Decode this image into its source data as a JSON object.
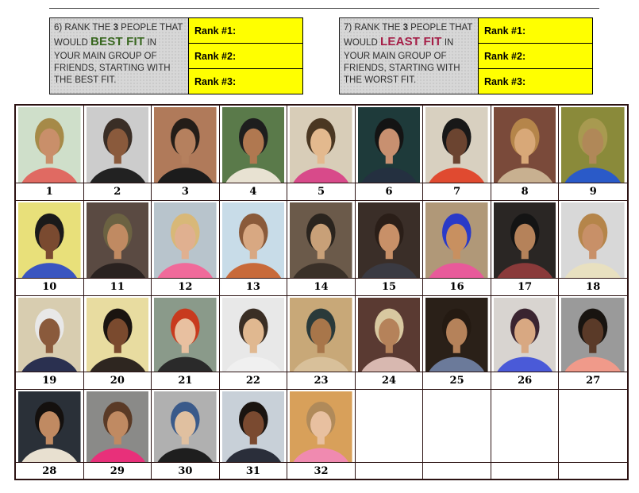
{
  "page": {
    "background": "#ffffff"
  },
  "colors": {
    "rank_cell_bg": "#ffff00",
    "question_box_bg": "#d7d7d7",
    "grid_border": "#2b1212",
    "best_fit_green": "#38671f",
    "least_fit_red": "#a51e47"
  },
  "questions": [
    {
      "pre": "6) RANK THE ",
      "num": "3",
      "mid": " PEOPLE THAT WOULD ",
      "highlight": "BEST FIT",
      "highlight_color": "#38671f",
      "post": " IN YOUR MAIN GROUP OF FRIENDS, STARTING WITH THE BEST FIT.",
      "ranks": [
        "Rank #1:",
        "Rank #2:",
        "Rank #3:"
      ]
    },
    {
      "pre": "7) RANK THE ",
      "num": "3",
      "mid": " PEOPLE THAT WOULD ",
      "highlight": "LEAST FIT",
      "highlight_color": "#a51e47",
      "post": " IN YOUR MAIN GROUP OF FRIENDS, STARTING WITH THE WORST FIT.",
      "ranks": [
        "Rank #1:",
        "Rank #2:",
        "Rank #3:"
      ]
    }
  ],
  "grid": {
    "columns": 9,
    "rows": 4,
    "empty_trailing_cells": 4,
    "people": [
      {
        "n": "1",
        "bg": "#cfdfca",
        "hair": "#a68a48",
        "skin": "#c98f6a",
        "shirt": "#e06a62"
      },
      {
        "n": "2",
        "bg": "#cccccc",
        "hair": "#3a2e26",
        "skin": "#8a5a3c",
        "shirt": "#222222"
      },
      {
        "n": "3",
        "bg": "#b07a5a",
        "hair": "#241d18",
        "skin": "#b5805e",
        "shirt": "#1c1c1c"
      },
      {
        "n": "4",
        "bg": "#5a7a4a",
        "hair": "#1e1e1e",
        "skin": "#b07850",
        "shirt": "#e8e2d2"
      },
      {
        "n": "5",
        "bg": "#d8cdb8",
        "hair": "#4a3722",
        "skin": "#e3b98e",
        "shirt": "#d84a8a"
      },
      {
        "n": "6",
        "bg": "#1e3a3a",
        "hair": "#141414",
        "skin": "#c89070",
        "shirt": "#243040"
      },
      {
        "n": "7",
        "bg": "#d8d0c0",
        "hair": "#181818",
        "skin": "#6b4430",
        "shirt": "#e04a30"
      },
      {
        "n": "8",
        "bg": "#7a4a3a",
        "hair": "#b5854a",
        "skin": "#d8a878",
        "shirt": "#c8b090"
      },
      {
        "n": "9",
        "bg": "#8a8a3a",
        "hair": "#a89a50",
        "skin": "#b08858",
        "shirt": "#2a5ac8"
      },
      {
        "n": "10",
        "bg": "#e8e07a",
        "hair": "#1a1a1a",
        "skin": "#7a4a30",
        "shirt": "#3a55c0"
      },
      {
        "n": "11",
        "bg": "#5a4a42",
        "hair": "#6b6242",
        "skin": "#c08a62",
        "shirt": "#2a2220"
      },
      {
        "n": "12",
        "bg": "#b8c4cc",
        "hair": "#d8b878",
        "skin": "#e0b090",
        "shirt": "#f06a9a"
      },
      {
        "n": "13",
        "bg": "#c8dce8",
        "hair": "#8a5a3a",
        "skin": "#d8a882",
        "shirt": "#c86a3a"
      },
      {
        "n": "14",
        "bg": "#6b5a4a",
        "hair": "#2a241e",
        "skin": "#c8a078",
        "shirt": "#3a3028"
      },
      {
        "n": "15",
        "bg": "#3a2e28",
        "hair": "#2a1e18",
        "skin": "#c89068",
        "shirt": "#3a3a42"
      },
      {
        "n": "16",
        "bg": "#b09878",
        "hair": "#2a3ac8",
        "skin": "#c89060",
        "shirt": "#e85a9a"
      },
      {
        "n": "17",
        "bg": "#2a2624",
        "hair": "#141414",
        "skin": "#b5825a",
        "shirt": "#8a3a3a"
      },
      {
        "n": "18",
        "bg": "#d8d8d8",
        "hair": "#b5854a",
        "skin": "#c89068",
        "shirt": "#e8e0c0"
      },
      {
        "n": "19",
        "bg": "#d8cdb0",
        "hair": "#e8e8e8",
        "skin": "#8a5a3c",
        "shirt": "#2a3050"
      },
      {
        "n": "20",
        "bg": "#e8dca0",
        "hair": "#1a1410",
        "skin": "#7a4a2e",
        "shirt": "#2e2620"
      },
      {
        "n": "21",
        "bg": "#8a9a8a",
        "hair": "#c83a1e",
        "skin": "#e8c0a0",
        "shirt": "#2a2a2a"
      },
      {
        "n": "22",
        "bg": "#e8e8e8",
        "hair": "#3a2e24",
        "skin": "#e0b890",
        "shirt": "#f0f0f0"
      },
      {
        "n": "23",
        "bg": "#c8a878",
        "hair": "#2a3a3a",
        "skin": "#a8764a",
        "shirt": "#d8c09a"
      },
      {
        "n": "24",
        "bg": "#5a3a32",
        "hair": "#d8c8a0",
        "skin": "#b5825a",
        "shirt": "#d8b8b0"
      },
      {
        "n": "25",
        "bg": "#2a2018",
        "hair": "#241a12",
        "skin": "#b5825a",
        "shirt": "#6b7a9a"
      },
      {
        "n": "26",
        "bg": "#d8d4d0",
        "hair": "#3a2430",
        "skin": "#d8a882",
        "shirt": "#4a5ad8"
      },
      {
        "n": "27",
        "bg": "#9a9a9a",
        "hair": "#181410",
        "skin": "#5a3a28",
        "shirt": "#f09a8a"
      },
      {
        "n": "28",
        "bg": "#2a3038",
        "hair": "#14100e",
        "skin": "#c08a62",
        "shirt": "#e8e0d0"
      },
      {
        "n": "29",
        "bg": "#8a8a88",
        "hair": "#5a3a26",
        "skin": "#c08a62",
        "shirt": "#e8307a"
      },
      {
        "n": "30",
        "bg": "#b0b0b0",
        "hair": "#3a5a8a",
        "skin": "#e0c0a0",
        "shirt": "#1e1e1e"
      },
      {
        "n": "31",
        "bg": "#c8d0d8",
        "hair": "#1a1410",
        "skin": "#7a4a30",
        "shirt": "#2a2e3a"
      },
      {
        "n": "32",
        "bg": "#d8a05a",
        "hair": "#b08a5a",
        "skin": "#e8c0a0",
        "shirt": "#f08ab0"
      }
    ]
  }
}
